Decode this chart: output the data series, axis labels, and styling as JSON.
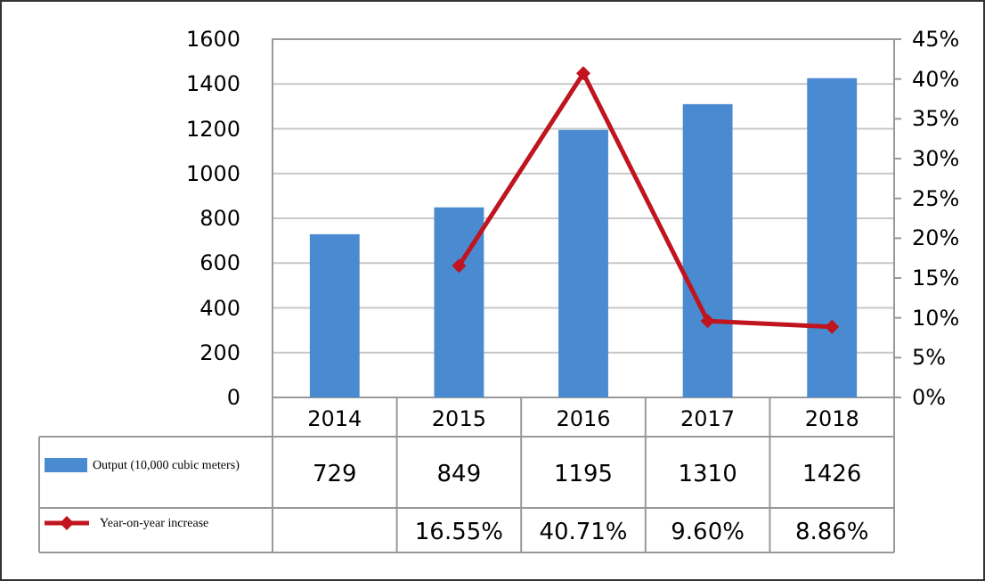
{
  "chart_data": {
    "type": "bar",
    "categories": [
      "2014",
      "2015",
      "2016",
      "2017",
      "2018"
    ],
    "series": [
      {
        "name": "Output (10,000 cubic meters)",
        "color": "#4a8ad0",
        "values": [
          729,
          849,
          1195,
          1310,
          1426
        ],
        "value_labels": [
          "729",
          "849",
          "1195",
          "1310",
          "1426"
        ]
      },
      {
        "name": "Year-on-year increase",
        "type": "line",
        "axis": "y2",
        "color": "#c0141e",
        "values": [
          null,
          16.55,
          40.71,
          9.6,
          8.86
        ],
        "value_labels": [
          null,
          "16.55%",
          "40.71%",
          "9.60%",
          "8.86%"
        ]
      }
    ],
    "ylim": [
      0,
      1600
    ],
    "yticks": [
      0,
      200,
      400,
      600,
      800,
      1000,
      1200,
      1400,
      1600
    ],
    "y2lim": [
      0,
      45
    ],
    "y2ticks": [
      {
        "value": 0,
        "label": "0%"
      },
      {
        "value": 5,
        "label": "5%"
      },
      {
        "value": 10,
        "label": "10%"
      },
      {
        "value": 15,
        "label": "15%"
      },
      {
        "value": 20,
        "label": "20%"
      },
      {
        "value": 25,
        "label": "25%"
      },
      {
        "value": 30,
        "label": "30%"
      },
      {
        "value": 35,
        "label": "35%"
      },
      {
        "value": 40,
        "label": "40%"
      },
      {
        "value": 45,
        "label": "45%"
      }
    ],
    "grid": "y",
    "legend": "bottom",
    "marker": "diamond",
    "line_style": "solid"
  }
}
